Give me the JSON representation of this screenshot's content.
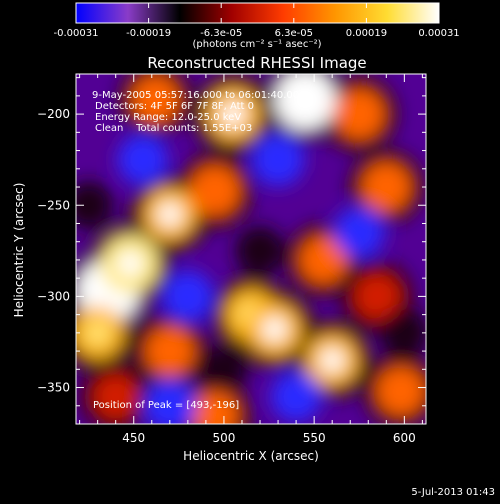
{
  "chart_data": {
    "type": "heatmap",
    "title": "Reconstructed RHESSI Image",
    "xlabel": "Heliocentric X (arcsec)",
    "ylabel": "Heliocentric Y (arcsec)",
    "xlim": [
      418,
      612
    ],
    "ylim": [
      -370,
      -178
    ],
    "xticks": [
      450,
      500,
      550,
      600
    ],
    "yticks": [
      -200,
      -250,
      -300,
      -350
    ],
    "colorbar": {
      "range": [
        -0.00031,
        0.00031
      ],
      "tick_labels": [
        "-0.00031",
        "-0.00019",
        "-6.3e-05",
        "6.3e-05",
        "0.00019",
        "0.00031"
      ],
      "units": "(photons cm⁻² s⁻¹ asec⁻²)",
      "colormap": [
        "#0000ff",
        "#8a3cc8",
        "#000000",
        "#a00000",
        "#ff3c00",
        "#ff9600",
        "#ffdc32",
        "#ffffff"
      ]
    },
    "annotations": {
      "time_range": "9-May-2005 05:57:16.000 to 06:01:40.000",
      "detectors": "Detectors: 4F 5F 6F 7F 8F, Att 0",
      "energy_range": "Energy Range: 12.0-25.0 keV",
      "method_counts": "Clean    Total counts: 1.55E+03",
      "peak": "Position of Peak = [493,-196]"
    },
    "peak_position": [
      493,
      -196
    ],
    "image_features": [
      {
        "x": 436,
        "y": -297,
        "v": 1.0
      },
      {
        "x": 448,
        "y": -282,
        "v": 0.8
      },
      {
        "x": 470,
        "y": -255,
        "v": 0.65
      },
      {
        "x": 430,
        "y": -320,
        "v": 0.6
      },
      {
        "x": 505,
        "y": -200,
        "v": 0.7
      },
      {
        "x": 545,
        "y": -192,
        "v": 0.9
      },
      {
        "x": 575,
        "y": -200,
        "v": 0.55
      },
      {
        "x": 590,
        "y": -240,
        "v": 0.5
      },
      {
        "x": 495,
        "y": -242,
        "v": 0.55
      },
      {
        "x": 515,
        "y": -310,
        "v": 0.6
      },
      {
        "x": 528,
        "y": -318,
        "v": 0.7
      },
      {
        "x": 470,
        "y": -330,
        "v": 0.5
      },
      {
        "x": 560,
        "y": -335,
        "v": 0.65
      },
      {
        "x": 598,
        "y": -352,
        "v": 0.5
      },
      {
        "x": 462,
        "y": -192,
        "v": 0.45
      },
      {
        "x": 555,
        "y": -280,
        "v": 0.45
      },
      {
        "x": 585,
        "y": -300,
        "v": 0.4
      },
      {
        "x": 440,
        "y": -355,
        "v": 0.35
      },
      {
        "x": 495,
        "y": -365,
        "v": 0.45
      },
      {
        "x": 480,
        "y": -300,
        "v": -0.5
      },
      {
        "x": 530,
        "y": -225,
        "v": -0.55
      },
      {
        "x": 455,
        "y": -225,
        "v": -0.45
      },
      {
        "x": 520,
        "y": -275,
        "v": -0.4
      },
      {
        "x": 575,
        "y": -265,
        "v": -0.45
      },
      {
        "x": 600,
        "y": -320,
        "v": -0.4
      },
      {
        "x": 470,
        "y": -360,
        "v": -0.5
      },
      {
        "x": 540,
        "y": -355,
        "v": -0.45
      },
      {
        "x": 425,
        "y": -250,
        "v": -0.35
      },
      {
        "x": 500,
        "y": -340,
        "v": -0.3
      }
    ]
  },
  "footer": {
    "date": "5-Jul-2013 01:43"
  }
}
